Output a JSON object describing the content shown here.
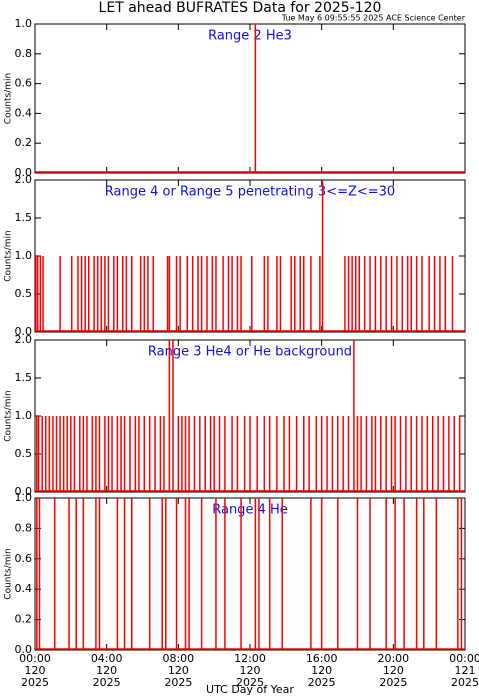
{
  "title": "LET ahead BUFRATES Data for 2025-120",
  "timestamp": "Tue May  6 09:55:55 2025 ACE Science Center",
  "xlabel": "UTC Day of Year",
  "chart_data": [
    {
      "type": "spike",
      "annotation": "Range 2 He3",
      "ylabel": "Counts/min",
      "color": "#ff0000",
      "xlim": [
        0,
        24
      ],
      "ylim": [
        0,
        1
      ],
      "yticks": [
        {
          "value": 0,
          "label": "0.0"
        },
        0.2,
        0.4,
        0.6,
        0.8,
        {
          "value": 1,
          "label": "1.0"
        }
      ],
      "x": [
        12.3
      ],
      "values": [
        1
      ]
    },
    {
      "type": "spike",
      "annotation": "Range 4 or Range 5 penetrating 3<=Z<=30",
      "ylabel": "Counts/min",
      "color": "#ff0000",
      "xlim": [
        0,
        24
      ],
      "ylim": [
        0,
        2
      ],
      "yticks": [
        {
          "value": 0,
          "label": "0.0"
        },
        0.5,
        {
          "value": 1,
          "label": "1.0"
        },
        1.5,
        {
          "value": 2,
          "label": "2.0"
        }
      ],
      "x": [
        0.05,
        0.15,
        0.3,
        0.45,
        1.4,
        2.05,
        2.4,
        2.6,
        2.8,
        3.0,
        3.3,
        3.5,
        3.7,
        3.9,
        4.1,
        4.4,
        4.6,
        4.9,
        5.1,
        5.4,
        5.9,
        6.1,
        6.3,
        6.6,
        7.4,
        7.5,
        7.9,
        8.1,
        8.5,
        8.8,
        9.1,
        9.3,
        9.6,
        9.9,
        10.1,
        10.5,
        10.8,
        11.0,
        11.3,
        11.5,
        12.1,
        12.8,
        13.0,
        13.5,
        13.7,
        14.3,
        14.5,
        14.8,
        15.0,
        15.4,
        15.9,
        16.05,
        17.3,
        17.5,
        17.7,
        17.9,
        18.1,
        18.4,
        18.7,
        19.0,
        19.3,
        19.6,
        19.9,
        20.2,
        20.5,
        20.8,
        21.0,
        21.3,
        21.6,
        22.0,
        22.3,
        22.6,
        22.9,
        23.3
      ],
      "values": [
        1,
        1,
        1,
        1,
        1,
        1,
        1,
        1,
        1,
        1,
        1,
        1,
        1,
        1,
        1,
        1,
        1,
        1,
        1,
        1,
        1,
        1,
        1,
        1,
        1,
        1,
        1,
        1,
        1,
        1,
        1,
        1,
        1,
        1,
        1,
        1,
        1,
        1,
        1,
        1,
        1,
        1,
        1,
        1,
        1,
        1,
        1,
        1,
        1,
        1,
        1,
        2,
        1,
        1,
        1,
        1,
        1,
        1,
        1,
        1,
        1,
        1,
        1,
        1,
        1,
        1,
        1,
        1,
        1,
        1,
        1,
        1,
        1,
        1
      ]
    },
    {
      "type": "spike",
      "annotation": "Range 3 He4 or He background",
      "ylabel": "Counts/min",
      "color": "#ff0000",
      "xlim": [
        0,
        24
      ],
      "ylim": [
        0,
        2
      ],
      "yticks": [
        {
          "value": 0,
          "label": "0.0"
        },
        0.5,
        {
          "value": 1,
          "label": "1.0"
        },
        1.5,
        {
          "value": 2,
          "label": "2.0"
        }
      ],
      "x": [
        0.1,
        0.2,
        0.4,
        0.6,
        0.8,
        1.0,
        1.2,
        1.4,
        1.6,
        1.8,
        2.0,
        2.2,
        2.5,
        2.7,
        2.9,
        3.2,
        3.4,
        3.6,
        3.9,
        4.1,
        4.3,
        4.6,
        4.8,
        5.0,
        5.3,
        5.6,
        5.8,
        6.1,
        6.4,
        6.7,
        7.0,
        7.2,
        7.5,
        7.7,
        8.0,
        8.2,
        8.4,
        8.6,
        8.9,
        9.2,
        9.5,
        9.8,
        10.0,
        10.3,
        10.6,
        11.0,
        11.3,
        11.7,
        12.0,
        12.4,
        12.8,
        13.1,
        13.5,
        13.9,
        14.2,
        14.6,
        15.0,
        15.3,
        15.7,
        16.0,
        16.3,
        16.6,
        16.9,
        17.2,
        17.5,
        17.8,
        18.0,
        18.2,
        18.5,
        18.8,
        19.0,
        19.3,
        19.6,
        19.9,
        20.1,
        20.4,
        20.7,
        21.0,
        21.3,
        21.6,
        21.9,
        22.2,
        22.5,
        22.8,
        23.1,
        23.4,
        23.7
      ],
      "values": [
        1,
        1,
        1,
        1,
        1,
        1,
        1,
        1,
        1,
        1,
        1,
        1,
        1,
        1,
        1,
        1,
        1,
        1,
        1,
        1,
        1,
        1,
        1,
        1,
        1,
        1,
        1,
        1,
        1,
        1,
        1,
        1,
        2,
        2,
        1,
        1,
        1,
        1,
        1,
        1,
        1,
        1,
        1,
        1,
        1,
        1,
        1,
        1,
        1,
        1,
        1,
        1,
        1,
        1,
        1,
        1,
        1,
        1,
        1,
        1,
        1,
        1,
        1,
        1,
        1,
        2,
        1,
        1,
        1,
        1,
        1,
        1,
        1,
        1,
        1,
        1,
        1,
        1,
        1,
        1,
        1,
        1,
        1,
        1,
        1,
        1,
        1
      ]
    },
    {
      "type": "spike",
      "annotation": "Range 4 He",
      "ylabel": "Counts/min",
      "color": "#ff0000",
      "xlim": [
        0,
        24
      ],
      "ylim": [
        0,
        1
      ],
      "yticks": [
        {
          "value": 0,
          "label": "0.0"
        },
        0.2,
        0.4,
        0.6,
        0.8,
        {
          "value": 1,
          "label": "1.0"
        }
      ],
      "xticks": [
        {
          "value": 0,
          "label": "00:00",
          "doy": "120",
          "year": "2025"
        },
        {
          "value": 4,
          "label": "04:00",
          "doy": "120",
          "year": "2025"
        },
        {
          "value": 8,
          "label": "08:00",
          "doy": "120",
          "year": "2025"
        },
        {
          "value": 12,
          "label": "12:00",
          "doy": "120",
          "year": "2025"
        },
        {
          "value": 16,
          "label": "16:00",
          "doy": "120",
          "year": "2025"
        },
        {
          "value": 20,
          "label": "20:00",
          "doy": "120",
          "year": "2025"
        },
        {
          "value": 24,
          "label": "00:00",
          "doy": "121",
          "year": "2025"
        }
      ],
      "x": [
        0.1,
        0.25,
        1.1,
        1.9,
        2.3,
        2.7,
        3.4,
        3.6,
        4.6,
        5.0,
        5.4,
        6.4,
        7.1,
        7.3,
        7.9,
        8.4,
        8.6,
        9.3,
        10.1,
        10.6,
        11.5,
        12.3,
        12.5,
        13.1,
        13.8,
        15.4,
        16.0,
        16.9,
        18.0,
        18.7,
        19.6,
        20.1,
        20.6,
        21.3,
        21.7,
        22.4,
        23.6,
        23.8
      ],
      "values": [
        1,
        1,
        1,
        1,
        1,
        1,
        1,
        1,
        1,
        1,
        1,
        1,
        1,
        1,
        1,
        1,
        1,
        1,
        1,
        1,
        1,
        1,
        1,
        1,
        1,
        1,
        1,
        1,
        1,
        1,
        1,
        1,
        1,
        1,
        1,
        1,
        1,
        1
      ]
    }
  ]
}
